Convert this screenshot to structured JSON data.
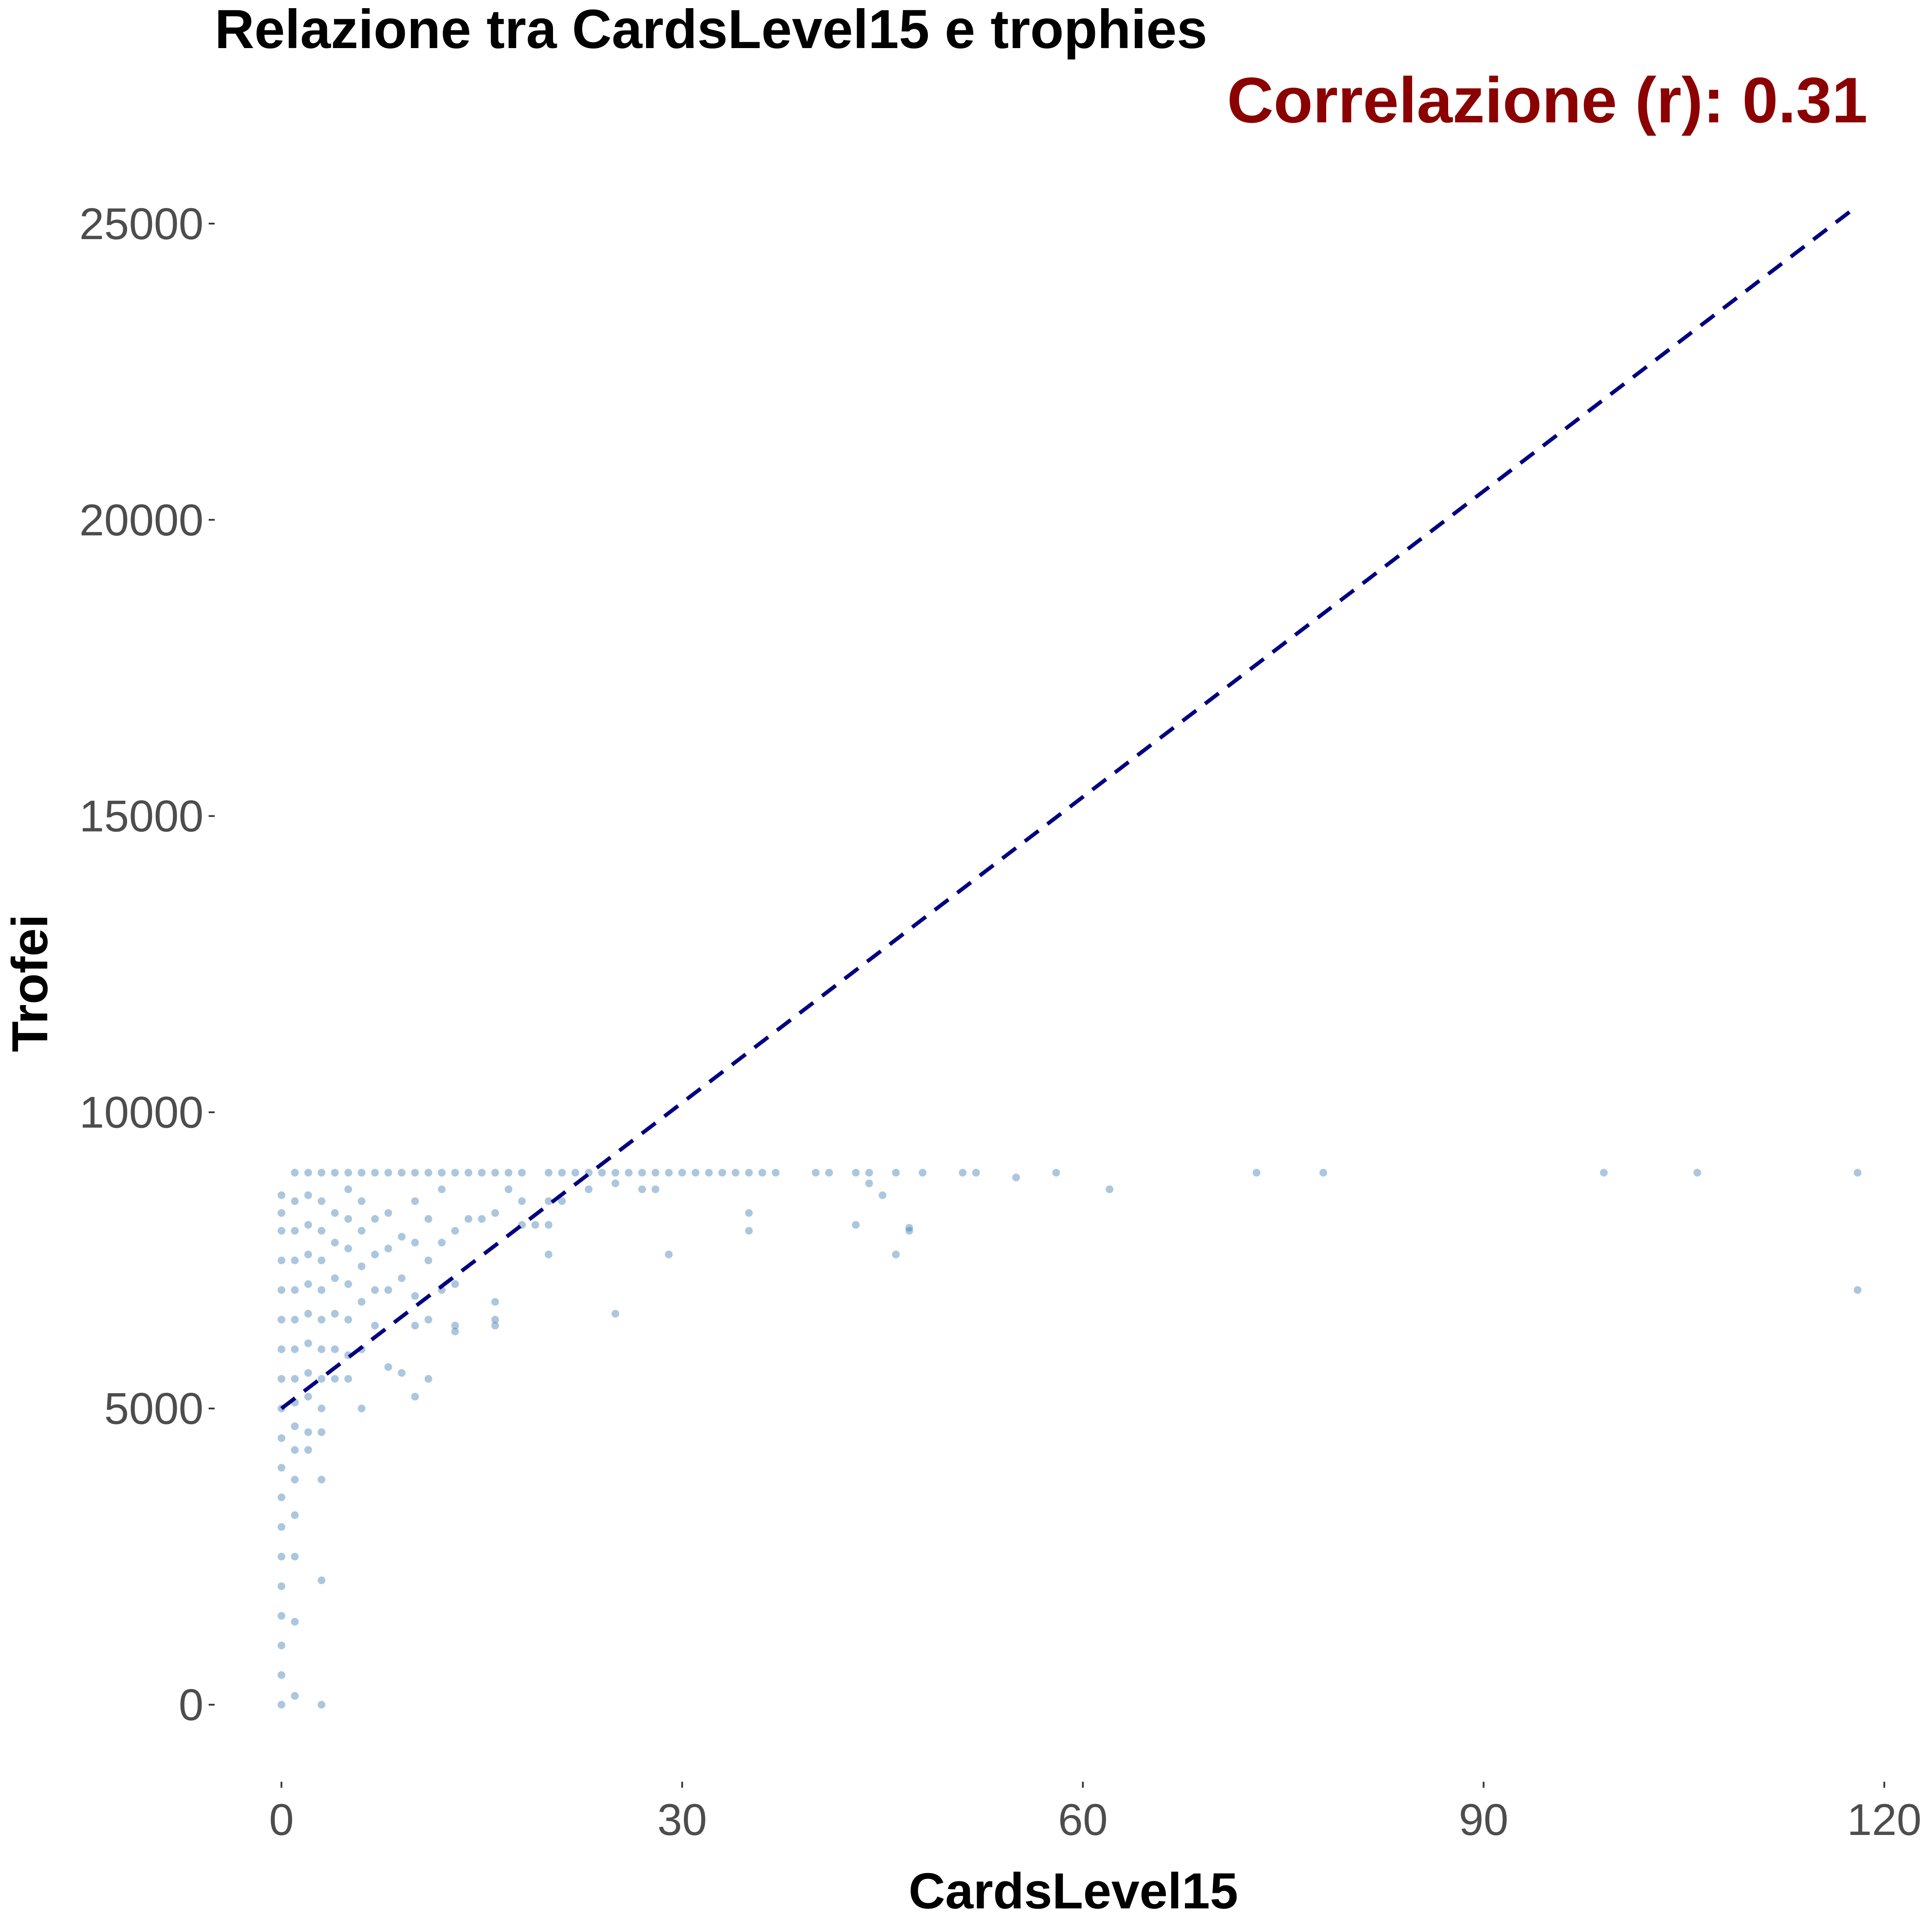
{
  "chart_data": {
    "type": "scatter",
    "title": "Relazione tra CardsLevel15 e trophies",
    "annotation": "Correlazione (r): 0.31",
    "xlabel": "CardsLevel15",
    "ylabel": "Trofei",
    "xlim": [
      -5,
      121
    ],
    "ylim": [
      -1300,
      26600
    ],
    "x_ticks": [
      "0",
      "30",
      "60",
      "90",
      "120"
    ],
    "y_ticks": [
      "0",
      "5000",
      "10000",
      "15000",
      "20000",
      "25000"
    ],
    "grid": false,
    "colors": {
      "points": "#4682b4",
      "trend_line": "#000080",
      "annotation": "#8b0000"
    },
    "trend_line": {
      "style": "dashed",
      "x": [
        0,
        118
      ],
      "y": [
        5000,
        25300
      ]
    },
    "points": [
      [
        0,
        0
      ],
      [
        0,
        500
      ],
      [
        0,
        1000
      ],
      [
        0,
        1500
      ],
      [
        0,
        2000
      ],
      [
        0,
        2500
      ],
      [
        0,
        3000
      ],
      [
        0,
        3500
      ],
      [
        0,
        4000
      ],
      [
        0,
        4500
      ],
      [
        0,
        5000
      ],
      [
        0,
        5500
      ],
      [
        0,
        6000
      ],
      [
        0,
        6500
      ],
      [
        0,
        7000
      ],
      [
        0,
        7500
      ],
      [
        0,
        8000
      ],
      [
        0,
        8300
      ],
      [
        0,
        8600
      ],
      [
        1,
        150
      ],
      [
        1,
        1400
      ],
      [
        1,
        2500
      ],
      [
        1,
        3200
      ],
      [
        1,
        3800
      ],
      [
        1,
        4300
      ],
      [
        1,
        4700
      ],
      [
        1,
        5100
      ],
      [
        1,
        5500
      ],
      [
        1,
        6000
      ],
      [
        1,
        6500
      ],
      [
        1,
        7000
      ],
      [
        1,
        7500
      ],
      [
        1,
        8000
      ],
      [
        1,
        8500
      ],
      [
        1,
        8980
      ],
      [
        2,
        4300
      ],
      [
        2,
        4600
      ],
      [
        2,
        5200
      ],
      [
        2,
        5600
      ],
      [
        2,
        6100
      ],
      [
        2,
        6600
      ],
      [
        2,
        7100
      ],
      [
        2,
        7600
      ],
      [
        2,
        8100
      ],
      [
        2,
        8600
      ],
      [
        2,
        8980
      ],
      [
        3,
        0
      ],
      [
        3,
        2100
      ],
      [
        3,
        3800
      ],
      [
        3,
        4600
      ],
      [
        3,
        5000
      ],
      [
        3,
        5500
      ],
      [
        3,
        6000
      ],
      [
        3,
        6500
      ],
      [
        3,
        7000
      ],
      [
        3,
        7500
      ],
      [
        3,
        8000
      ],
      [
        3,
        8500
      ],
      [
        3,
        8980
      ],
      [
        4,
        5500
      ],
      [
        4,
        6000
      ],
      [
        4,
        6600
      ],
      [
        4,
        7200
      ],
      [
        4,
        7800
      ],
      [
        4,
        8300
      ],
      [
        4,
        8980
      ],
      [
        5,
        5500
      ],
      [
        5,
        5900
      ],
      [
        5,
        6500
      ],
      [
        5,
        7100
      ],
      [
        5,
        7700
      ],
      [
        5,
        8200
      ],
      [
        5,
        8700
      ],
      [
        5,
        8980
      ],
      [
        6,
        5000
      ],
      [
        6,
        6000
      ],
      [
        6,
        6800
      ],
      [
        6,
        7400
      ],
      [
        6,
        8000
      ],
      [
        6,
        8500
      ],
      [
        6,
        8980
      ],
      [
        7,
        6400
      ],
      [
        7,
        7000
      ],
      [
        7,
        7600
      ],
      [
        7,
        8200
      ],
      [
        7,
        8980
      ],
      [
        8,
        5700
      ],
      [
        8,
        7000
      ],
      [
        8,
        7700
      ],
      [
        8,
        8300
      ],
      [
        8,
        8980
      ],
      [
        9,
        5600
      ],
      [
        9,
        7200
      ],
      [
        9,
        7900
      ],
      [
        9,
        8980
      ],
      [
        10,
        5200
      ],
      [
        10,
        6400
      ],
      [
        10,
        6900
      ],
      [
        10,
        7800
      ],
      [
        10,
        8500
      ],
      [
        10,
        8980
      ],
      [
        11,
        5500
      ],
      [
        11,
        6500
      ],
      [
        11,
        7500
      ],
      [
        11,
        8200
      ],
      [
        11,
        8980
      ],
      [
        12,
        7000
      ],
      [
        12,
        7800
      ],
      [
        12,
        8700
      ],
      [
        12,
        8980
      ],
      [
        13,
        6300
      ],
      [
        13,
        6400
      ],
      [
        13,
        7100
      ],
      [
        13,
        8000
      ],
      [
        13,
        8980
      ],
      [
        14,
        8200
      ],
      [
        14,
        8980
      ],
      [
        15,
        8200
      ],
      [
        15,
        8980
      ],
      [
        16,
        6400
      ],
      [
        16,
        6500
      ],
      [
        16,
        6800
      ],
      [
        16,
        8300
      ],
      [
        16,
        8980
      ],
      [
        17,
        8700
      ],
      [
        17,
        8980
      ],
      [
        18,
        8100
      ],
      [
        18,
        8500
      ],
      [
        18,
        8980
      ],
      [
        19,
        8100
      ],
      [
        20,
        7600
      ],
      [
        20,
        8100
      ],
      [
        20,
        8500
      ],
      [
        20,
        8980
      ],
      [
        21,
        8500
      ],
      [
        21,
        8980
      ],
      [
        22,
        8980
      ],
      [
        23,
        8700
      ],
      [
        23,
        8980
      ],
      [
        24,
        8980
      ],
      [
        25,
        6600
      ],
      [
        25,
        8800
      ],
      [
        25,
        8980
      ],
      [
        26,
        8980
      ],
      [
        27,
        8700
      ],
      [
        27,
        8980
      ],
      [
        28,
        8700
      ],
      [
        28,
        8980
      ],
      [
        29,
        7600
      ],
      [
        29,
        8980
      ],
      [
        30,
        8980
      ],
      [
        31,
        8980
      ],
      [
        32,
        8980
      ],
      [
        33,
        8980
      ],
      [
        34,
        8980
      ],
      [
        35,
        8000
      ],
      [
        35,
        8300
      ],
      [
        35,
        8980
      ],
      [
        36,
        8980
      ],
      [
        37,
        8980
      ],
      [
        40,
        8980
      ],
      [
        41,
        8980
      ],
      [
        43,
        8100
      ],
      [
        43,
        8980
      ],
      [
        44,
        8800
      ],
      [
        44,
        8980
      ],
      [
        45,
        8600
      ],
      [
        46,
        7600
      ],
      [
        46,
        8980
      ],
      [
        47,
        8000
      ],
      [
        47,
        8050
      ],
      [
        48,
        8980
      ],
      [
        51,
        8980
      ],
      [
        52,
        8980
      ],
      [
        55,
        8900
      ],
      [
        58,
        8980
      ],
      [
        62,
        8700
      ],
      [
        73,
        8980
      ],
      [
        78,
        8980
      ],
      [
        99,
        8980
      ],
      [
        106,
        8980
      ],
      [
        118,
        7000
      ],
      [
        118,
        8980
      ]
    ]
  }
}
